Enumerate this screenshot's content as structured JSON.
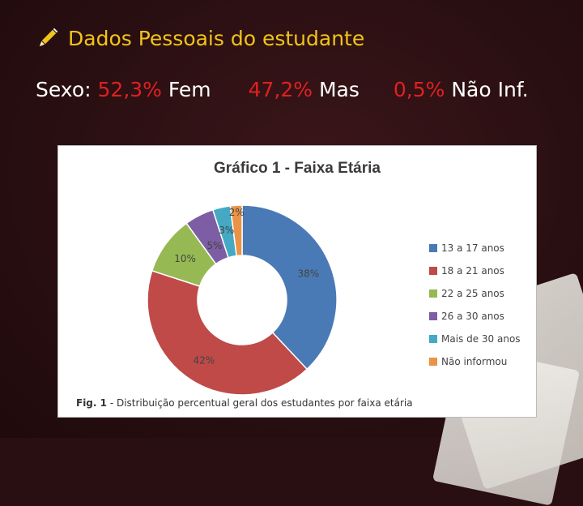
{
  "slide": {
    "title": "Dados Pessoais do estudante",
    "sexo": {
      "label": "Sexo:",
      "fem_pct": "52,3%",
      "fem_label": "Fem",
      "mas_pct": "47,2%",
      "mas_label": "Mas",
      "nao_pct": "0,5%",
      "nao_label": "Não Inf."
    },
    "icon": "pencil-icon"
  },
  "chart_data": {
    "type": "pie",
    "title": "Gráfico 1 - Faixa Etária",
    "caption_prefix": "Fig. 1",
    "caption_text": " - Distribuição percentual geral dos estudantes por faixa etária",
    "categories": [
      "13 a 17 anos",
      "18 a 21 anos",
      "22 a 25 anos",
      "26 a 30 anos",
      "Mais de 30 anos",
      "Não informou"
    ],
    "values": [
      38,
      42,
      10,
      5,
      3,
      2
    ],
    "labels": [
      "38%",
      "42%",
      "10%",
      "5%",
      "3%",
      "2%"
    ],
    "colors": [
      "#4a7ab6",
      "#bf4a48",
      "#97b954",
      "#7d5da3",
      "#45a9c4",
      "#ea9346"
    ],
    "donut": true,
    "legend": "right"
  }
}
